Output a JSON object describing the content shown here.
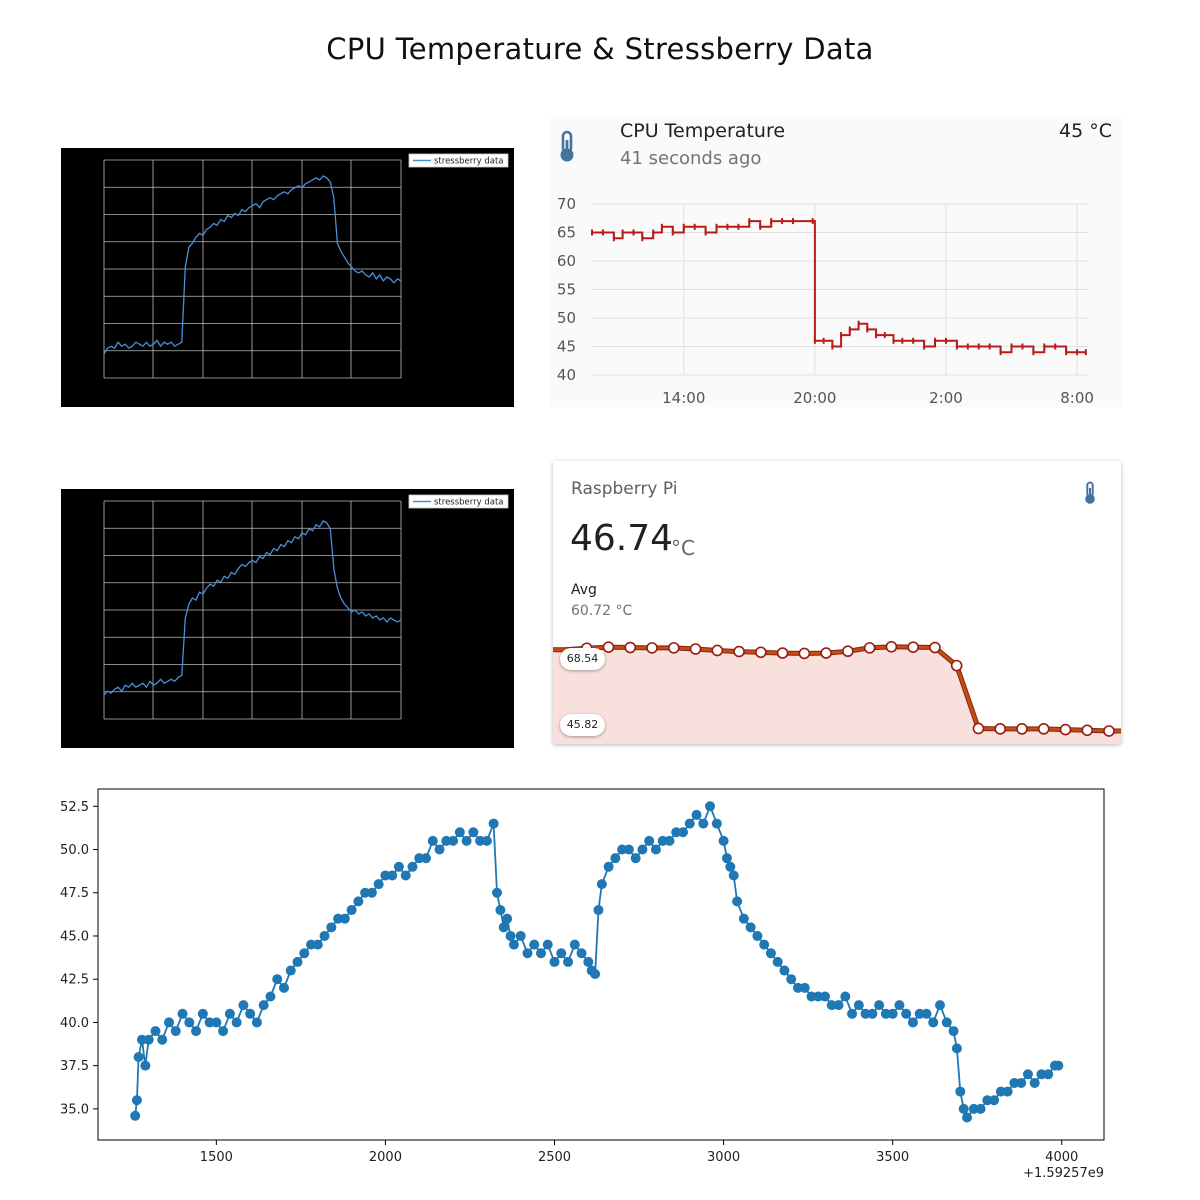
{
  "title": "CPU Temperature & Stressberry Data",
  "colors": {
    "stress_line": "#4a8fd6",
    "ha_line": "#b71c1c",
    "gauge_line": "#c94a16",
    "gauge_fill": "#f8e1dc",
    "scatter": "#1f77b4"
  },
  "stress_charts": [
    {
      "legend": "stressberry data",
      "chart_data": {
        "type": "line",
        "series": [
          {
            "name": "stressberry data",
            "values": [
              0.06,
              0.09,
              0.1,
              0.09,
              0.12,
              0.1,
              0.11,
              0.09,
              0.1,
              0.12,
              0.11,
              0.1,
              0.12,
              0.1,
              0.11,
              0.13,
              0.1,
              0.12,
              0.11,
              0.12,
              0.1,
              0.11,
              0.12,
              0.5,
              0.6,
              0.62,
              0.65,
              0.67,
              0.66,
              0.69,
              0.7,
              0.72,
              0.71,
              0.74,
              0.73,
              0.76,
              0.75,
              0.77,
              0.76,
              0.79,
              0.78,
              0.8,
              0.81,
              0.82,
              0.8,
              0.83,
              0.84,
              0.85,
              0.84,
              0.86,
              0.87,
              0.88,
              0.87,
              0.89,
              0.9,
              0.91,
              0.9,
              0.92,
              0.93,
              0.94,
              0.95,
              0.94,
              0.96,
              0.95,
              0.93,
              0.85,
              0.62,
              0.58,
              0.55,
              0.52,
              0.5,
              0.48,
              0.47,
              0.48,
              0.46,
              0.45,
              0.47,
              0.44,
              0.46,
              0.43,
              0.45,
              0.44,
              0.42,
              0.44,
              0.43
            ]
          }
        ],
        "xlabel": "",
        "ylabel": "",
        "grid": true,
        "legend_position": "top-right"
      }
    },
    {
      "legend": "stressberry data",
      "chart_data": {
        "type": "line",
        "series": [
          {
            "name": "stressberry data",
            "values": [
              0.06,
              0.08,
              0.07,
              0.09,
              0.1,
              0.08,
              0.11,
              0.1,
              0.12,
              0.1,
              0.11,
              0.12,
              0.1,
              0.13,
              0.11,
              0.12,
              0.14,
              0.12,
              0.13,
              0.14,
              0.13,
              0.15,
              0.16,
              0.45,
              0.52,
              0.55,
              0.54,
              0.58,
              0.57,
              0.6,
              0.62,
              0.61,
              0.64,
              0.63,
              0.66,
              0.65,
              0.68,
              0.67,
              0.7,
              0.72,
              0.71,
              0.73,
              0.74,
              0.73,
              0.76,
              0.75,
              0.78,
              0.77,
              0.8,
              0.79,
              0.82,
              0.81,
              0.84,
              0.83,
              0.86,
              0.85,
              0.88,
              0.87,
              0.9,
              0.89,
              0.92,
              0.91,
              0.94,
              0.93,
              0.9,
              0.7,
              0.6,
              0.55,
              0.52,
              0.5,
              0.48,
              0.49,
              0.47,
              0.48,
              0.46,
              0.47,
              0.45,
              0.46,
              0.44,
              0.45,
              0.43,
              0.45,
              0.44,
              0.43,
              0.44
            ]
          }
        ],
        "xlabel": "",
        "ylabel": "",
        "grid": true,
        "legend_position": "top-right"
      }
    }
  ],
  "ha_card": {
    "title": "CPU Temperature",
    "subtitle": "41 seconds ago",
    "value": "45 °C",
    "icon": "thermometer-icon",
    "chart_data": {
      "type": "line",
      "y_ticks": [
        "70",
        "65",
        "60",
        "55",
        "50",
        "45",
        "40"
      ],
      "ylim": [
        40,
        70
      ],
      "x_ticks": [
        "14:00",
        "20:00",
        "2:00",
        "8:00"
      ],
      "x_tick_hours": [
        14,
        20,
        26,
        32
      ],
      "xlim_hours": [
        9.8,
        32.5
      ],
      "series": [
        {
          "name": "CPU Temperature",
          "hours": [
            9.8,
            10.3,
            10.8,
            11.2,
            11.7,
            12.1,
            12.6,
            13.0,
            13.5,
            14.0,
            14.5,
            15.0,
            15.5,
            16.0,
            16.5,
            17.0,
            17.5,
            18.0,
            18.5,
            19.0,
            19.9,
            20.0,
            20.4,
            20.8,
            21.2,
            21.6,
            22.0,
            22.4,
            22.8,
            23.2,
            23.6,
            24.0,
            24.5,
            25.0,
            25.5,
            26.0,
            26.5,
            27.0,
            27.5,
            28.0,
            28.5,
            29.0,
            29.5,
            30.0,
            30.5,
            31.0,
            31.5,
            32.0,
            32.4
          ],
          "values": [
            65,
            65,
            64,
            65,
            65,
            64,
            65,
            66,
            65,
            66,
            66,
            65,
            66,
            66,
            66,
            67,
            66,
            67,
            67,
            67,
            67,
            46,
            46,
            45,
            47,
            48,
            49,
            48,
            47,
            47,
            46,
            46,
            46,
            45,
            46,
            46,
            45,
            45,
            45,
            45,
            44,
            45,
            45,
            44,
            45,
            45,
            44,
            44,
            44
          ]
        }
      ]
    }
  },
  "gauge_card": {
    "title": "Raspberry Pi",
    "value": "46.74",
    "unit": "°C",
    "avg_label": "Avg",
    "avg_value": "60.72 °C",
    "max_badge": "68.54",
    "min_badge": "45.82",
    "icon": "thermometer-icon",
    "chart_data": {
      "type": "area",
      "ylim": [
        45.82,
        68.54
      ],
      "series": [
        {
          "name": "Raspberry Pi",
          "values": [
            67.8,
            68.2,
            68.5,
            68.4,
            68.3,
            68.3,
            68.0,
            67.6,
            67.3,
            67.1,
            66.9,
            66.8,
            66.9,
            67.4,
            68.3,
            68.6,
            68.5,
            68.4,
            63.5,
            46.5,
            46.4,
            46.4,
            46.4,
            46.2,
            46.0,
            45.82
          ]
        }
      ]
    }
  },
  "scatter_chart": {
    "offset_label": "+1.59257e9",
    "chart_data": {
      "type": "line",
      "xlim": [
        1150,
        4125
      ],
      "ylim": [
        33.2,
        53.5
      ],
      "x_ticks": [
        "1500",
        "2000",
        "2500",
        "3000",
        "3500",
        "4000"
      ],
      "x_tick_values": [
        1500,
        2000,
        2500,
        3000,
        3500,
        4000
      ],
      "y_ticks": [
        "52.5",
        "50.0",
        "47.5",
        "45.0",
        "42.5",
        "40.0",
        "37.5",
        "35.0"
      ],
      "y_tick_values": [
        52.5,
        50.0,
        47.5,
        45.0,
        42.5,
        40.0,
        37.5,
        35.0
      ],
      "series": [
        {
          "name": "",
          "x": [
            1260,
            1265,
            1270,
            1280,
            1290,
            1300,
            1320,
            1340,
            1360,
            1380,
            1400,
            1420,
            1440,
            1460,
            1480,
            1500,
            1520,
            1540,
            1560,
            1580,
            1600,
            1620,
            1640,
            1660,
            1680,
            1700,
            1720,
            1740,
            1760,
            1780,
            1800,
            1820,
            1840,
            1860,
            1880,
            1900,
            1920,
            1940,
            1960,
            1980,
            2000,
            2020,
            2040,
            2060,
            2080,
            2100,
            2120,
            2140,
            2160,
            2180,
            2200,
            2220,
            2240,
            2260,
            2280,
            2300,
            2320,
            2330,
            2340,
            2350,
            2360,
            2370,
            2380,
            2400,
            2420,
            2440,
            2460,
            2480,
            2500,
            2520,
            2540,
            2560,
            2580,
            2600,
            2610,
            2620,
            2630,
            2640,
            2660,
            2680,
            2700,
            2720,
            2740,
            2760,
            2780,
            2800,
            2820,
            2840,
            2860,
            2880,
            2900,
            2920,
            2940,
            2960,
            2980,
            3000,
            3010,
            3020,
            3030,
            3040,
            3060,
            3080,
            3100,
            3120,
            3140,
            3160,
            3180,
            3200,
            3220,
            3240,
            3260,
            3280,
            3300,
            3320,
            3340,
            3360,
            3380,
            3400,
            3420,
            3440,
            3460,
            3480,
            3500,
            3520,
            3540,
            3560,
            3580,
            3600,
            3620,
            3640,
            3660,
            3680,
            3690,
            3700,
            3710,
            3720,
            3740,
            3760,
            3780,
            3800,
            3820,
            3840,
            3860,
            3880,
            3900,
            3920,
            3940,
            3960,
            3980,
            3990
          ],
          "y": [
            34.6,
            35.5,
            38.0,
            39.0,
            37.5,
            39.0,
            39.5,
            39.0,
            40.0,
            39.5,
            40.5,
            40.0,
            39.5,
            40.5,
            40.0,
            40.0,
            39.5,
            40.5,
            40.0,
            41.0,
            40.5,
            40.0,
            41.0,
            41.5,
            42.5,
            42.0,
            43.0,
            43.5,
            44.0,
            44.5,
            44.5,
            45.0,
            45.5,
            46.0,
            46.0,
            46.5,
            47.0,
            47.5,
            47.5,
            48.0,
            48.5,
            48.5,
            49.0,
            48.5,
            49.0,
            49.5,
            49.5,
            50.5,
            50.0,
            50.5,
            50.5,
            51.0,
            50.5,
            51.0,
            50.5,
            50.5,
            51.5,
            47.5,
            46.5,
            45.5,
            46.0,
            45.0,
            44.5,
            45.0,
            44.0,
            44.5,
            44.0,
            44.5,
            43.5,
            44.0,
            43.5,
            44.5,
            44.0,
            43.5,
            43.0,
            42.8,
            46.5,
            48.0,
            49.0,
            49.5,
            50.0,
            50.0,
            49.5,
            50.0,
            50.5,
            50.0,
            50.5,
            50.5,
            51.0,
            51.0,
            51.5,
            52.0,
            51.5,
            52.5,
            51.5,
            50.5,
            49.5,
            49.0,
            48.5,
            47.0,
            46.0,
            45.5,
            45.0,
            44.5,
            44.0,
            43.5,
            43.0,
            42.5,
            42.0,
            42.0,
            41.5,
            41.5,
            41.5,
            41.0,
            41.0,
            41.5,
            40.5,
            41.0,
            40.5,
            40.5,
            41.0,
            40.5,
            40.5,
            41.0,
            40.5,
            40.0,
            40.5,
            40.5,
            40.0,
            41.0,
            40.0,
            39.5,
            38.5,
            36.0,
            35.0,
            34.5,
            35.0,
            35.0,
            35.5,
            35.5,
            36.0,
            36.0,
            36.5,
            36.5,
            37.0,
            36.5,
            37.0,
            37.0,
            37.5,
            37.5
          ]
        }
      ]
    }
  }
}
